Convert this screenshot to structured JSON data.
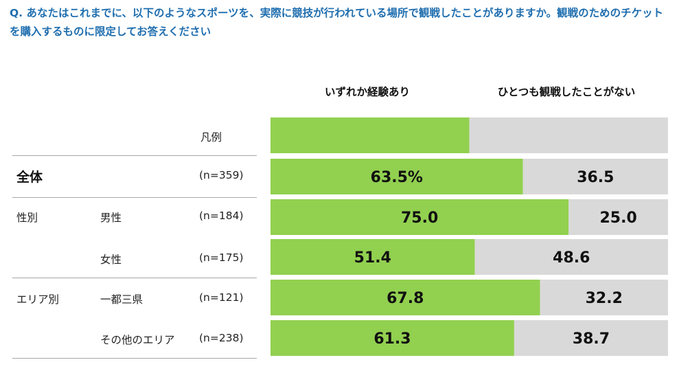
{
  "question": "Q. あなたはこれまでに、以下のようなスポーツを、実際に競技が行われている場所で観戦したことがありますか。観戦のためのチケットを購入するものに限定してお答えください",
  "colors": {
    "green": "#92d050",
    "gray": "#d9d9d9",
    "title": "#1f6eaf"
  },
  "chart_data": {
    "type": "bar",
    "orientation": "horizontal",
    "stacked": true,
    "unit": "%",
    "xlim": [
      0,
      100
    ],
    "series": [
      {
        "name": "いずれか経験あり",
        "color": "#92d050"
      },
      {
        "name": "ひとつも観戦したことがない",
        "color": "#d9d9d9"
      }
    ],
    "legend": {
      "label": "凡例",
      "share_experienced": 50.0
    },
    "rows": [
      {
        "group": "全体",
        "label": "",
        "n": "(n=359)",
        "values": [
          63.5,
          36.5
        ],
        "labels": [
          "63.5%",
          "36.5"
        ]
      },
      {
        "group": "性別",
        "label": "男性",
        "n": "(n=184)",
        "values": [
          75.0,
          25.0
        ],
        "labels": [
          "75.0",
          "25.0"
        ]
      },
      {
        "group": "",
        "label": "女性",
        "n": "(n=175)",
        "values": [
          51.4,
          48.6
        ],
        "labels": [
          "51.4",
          "48.6"
        ]
      },
      {
        "group": "エリア別",
        "label": "一都三県",
        "n": "(n=121)",
        "values": [
          67.8,
          32.2
        ],
        "labels": [
          "67.8",
          "32.2"
        ]
      },
      {
        "group": "",
        "label": "その他のエリア",
        "n": "(n=238)",
        "values": [
          61.3,
          38.7
        ],
        "labels": [
          "61.3",
          "38.7"
        ]
      }
    ]
  }
}
